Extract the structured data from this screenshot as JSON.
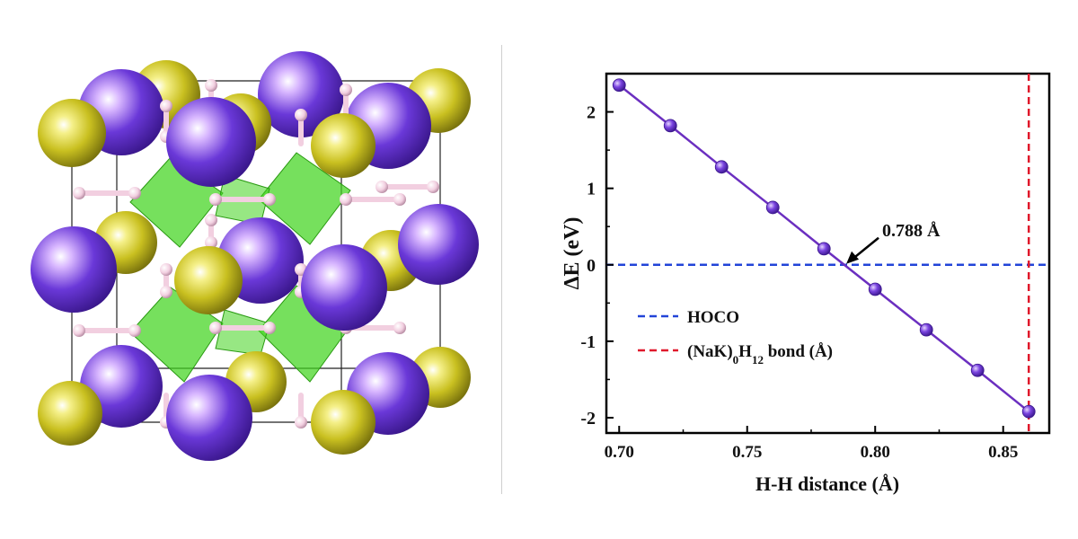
{
  "colors": {
    "purple_atom": "#6a38d8",
    "yellow_atom": "#c9c020",
    "hydrogen_atom": "#f2cfe0",
    "octahedra": "#41d41e",
    "curve": "#6b2fc0",
    "hoco_line": "#2244d8",
    "bond_line": "#e0192c"
  },
  "chart_data": {
    "type": "line",
    "x": [
      0.7,
      0.72,
      0.74,
      0.76,
      0.78,
      0.8,
      0.82,
      0.84,
      0.86
    ],
    "series": [
      {
        "values": [
          2.35,
          1.82,
          1.28,
          0.75,
          0.21,
          -0.32,
          -0.85,
          -1.38,
          -1.92
        ]
      }
    ],
    "xlabel": "H-H distance  (Å)",
    "ylabel": "ΔE (eV)",
    "xlim": [
      0.695,
      0.868
    ],
    "ylim": [
      -2.2,
      2.5
    ],
    "xticks": [
      "0.70",
      "0.75",
      "0.80",
      "0.85"
    ],
    "yticks": [
      "2",
      "1",
      "0",
      "-1",
      "-2"
    ],
    "hlines": [
      {
        "y": 0,
        "label": "HOCO",
        "style": "dashed"
      }
    ],
    "vlines": [
      {
        "x": 0.86,
        "label_main": "(NaK)",
        "label_sub1": "0",
        "label_mid": "H",
        "label_sub2": "12",
        "label_tail": " bond (Å)",
        "style": "dashed"
      }
    ],
    "annotation": {
      "text": "0.788 Å",
      "x": 0.788,
      "y": 0
    },
    "grid": false,
    "legend_position": "center-left"
  }
}
